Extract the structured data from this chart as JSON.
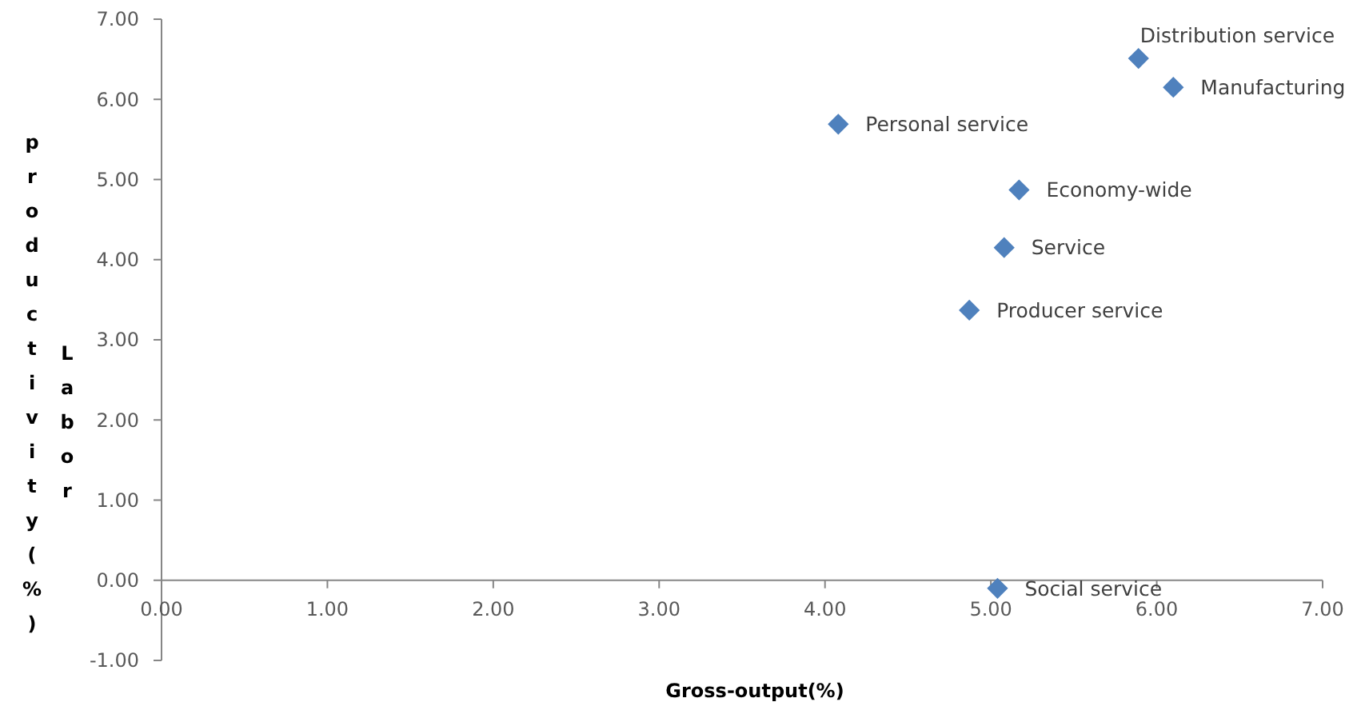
{
  "chart_data": {
    "type": "scatter",
    "xlabel": "Gross-output(%)",
    "ylabel": "Labor productivity(%)",
    "x": [
      5.89,
      6.1,
      4.08,
      5.17,
      5.08,
      4.87,
      5.04
    ],
    "series": [
      {
        "color": "#4f81bd",
        "values": [
          6.51,
          6.15,
          5.69,
          4.87,
          4.15,
          3.37,
          -0.1
        ]
      }
    ],
    "marker": "diamond",
    "xlim": [
      0,
      7
    ],
    "xticks": [
      {
        "value": 0,
        "label": "0.00"
      },
      {
        "value": 1,
        "label": "1.00"
      },
      {
        "value": 2,
        "label": "2.00"
      },
      {
        "value": 3,
        "label": "3.00"
      },
      {
        "value": 4,
        "label": "4.00"
      },
      {
        "value": 5,
        "label": "5.00"
      },
      {
        "value": 6,
        "label": "6.00"
      },
      {
        "value": 7,
        "label": "7.00"
      }
    ],
    "ylim": [
      -1,
      7
    ],
    "yticks": [
      {
        "value": -1,
        "label": "-1.00"
      },
      {
        "value": 0,
        "label": "0.00"
      },
      {
        "value": 1,
        "label": "1.00"
      },
      {
        "value": 2,
        "label": "2.00"
      },
      {
        "value": 3,
        "label": "3.00"
      },
      {
        "value": 4,
        "label": "4.00"
      },
      {
        "value": 5,
        "label": "5.00"
      },
      {
        "value": 6,
        "label": "6.00"
      },
      {
        "value": 7,
        "label": "7.00"
      }
    ],
    "annotations": [
      {
        "text": "Distribution service",
        "x": 5.89,
        "y": 6.51
      },
      {
        "text": "Manufacturing",
        "x": 6.1,
        "y": 6.15
      },
      {
        "text": "Personal service",
        "x": 4.08,
        "y": 5.69
      },
      {
        "text": "Economy-wide",
        "x": 5.17,
        "y": 4.87
      },
      {
        "text": "Service",
        "x": 5.08,
        "y": 4.15
      },
      {
        "text": "Producer service",
        "x": 4.87,
        "y": 3.37
      },
      {
        "text": "Social service",
        "x": 5.04,
        "y": -0.1
      }
    ]
  }
}
